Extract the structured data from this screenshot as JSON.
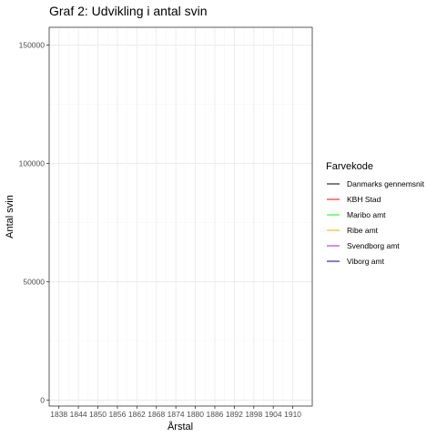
{
  "chart_data": {
    "type": "line",
    "title": "Graf 2: Udvikling i antal svin",
    "xlabel": "Årstal",
    "ylabel": "Antal svin",
    "x_ticks": [
      "1838",
      "1844",
      "1850",
      "1856",
      "1862",
      "1868",
      "1874",
      "1880",
      "1886",
      "1892",
      "1898",
      "1904",
      "1910"
    ],
    "xlim": [
      1835,
      1916
    ],
    "y_ticks": [
      "0",
      "50000",
      "100000",
      "150000"
    ],
    "y_tick_values": [
      0,
      50000,
      100000,
      150000
    ],
    "ylim": [
      -2500,
      157500
    ],
    "grid": true,
    "legend_position": "right",
    "legend_title": "Farvekode",
    "series": [
      {
        "name": "Danmarks gennemsnit",
        "color": "#000000",
        "values": []
      },
      {
        "name": "KBH Stad",
        "color": "#ff0000",
        "values": []
      },
      {
        "name": "Maribo amt",
        "color": "#00ff00",
        "values": []
      },
      {
        "name": "Ribe amt",
        "color": "#ffa500",
        "values": []
      },
      {
        "name": "Svendborg amt",
        "color": "#a020f0",
        "values": []
      },
      {
        "name": "Viborg amt",
        "color": "#00008b",
        "values": []
      }
    ]
  }
}
